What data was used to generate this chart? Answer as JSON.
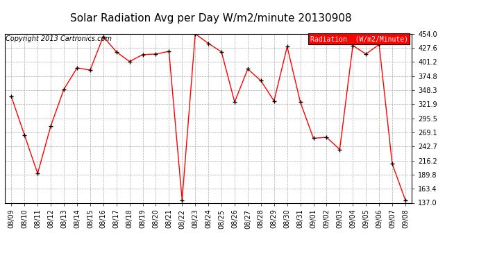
{
  "title": "Solar Radiation Avg per Day W/m2/minute 20130908",
  "copyright": "Copyright 2013 Cartronics.com",
  "legend_label": "Radiation  (W/m2/Minute)",
  "dates": [
    "08/09",
    "08/10",
    "08/11",
    "08/12",
    "08/13",
    "08/14",
    "08/15",
    "08/16",
    "08/17",
    "08/18",
    "08/19",
    "08/20",
    "08/21",
    "08/22",
    "08/23",
    "08/24",
    "08/25",
    "08/26",
    "08/27",
    "08/28",
    "08/29",
    "08/30",
    "08/31",
    "09/01",
    "09/02",
    "09/03",
    "09/04",
    "09/05",
    "09/06",
    "09/07",
    "09/08"
  ],
  "values": [
    336,
    264,
    192,
    281,
    350,
    390,
    386,
    449,
    420,
    402,
    415,
    416,
    421,
    142,
    454,
    436,
    420,
    326,
    388,
    366,
    328,
    430,
    326,
    258,
    260,
    237,
    432,
    416,
    434,
    210,
    142
  ],
  "ymin": 137.0,
  "ymax": 454.0,
  "yticks": [
    137.0,
    163.4,
    189.8,
    216.2,
    242.7,
    269.1,
    295.5,
    321.9,
    348.3,
    374.8,
    401.2,
    427.6,
    454.0
  ],
  "line_color": "red",
  "marker_color": "black",
  "bg_color": "#ffffff",
  "plot_bg_color": "#ffffff",
  "grid_color": "#aaaaaa",
  "title_fontsize": 11,
  "copyright_fontsize": 7,
  "tick_fontsize": 7,
  "legend_bg_color": "red",
  "legend_text_color": "white",
  "legend_fontsize": 7
}
